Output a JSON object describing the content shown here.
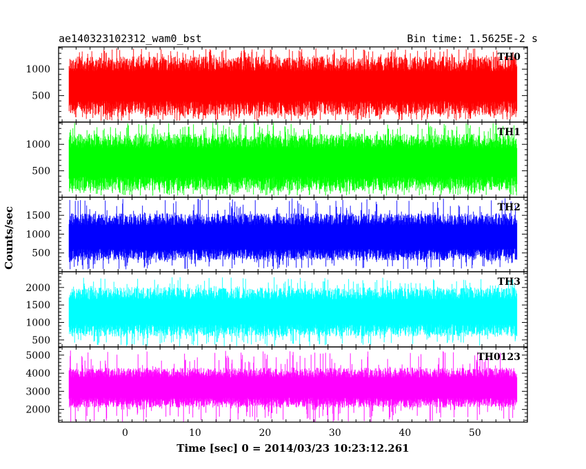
{
  "chart_data": {
    "type": "line",
    "title_left": "ae140323102312_wam0_bst",
    "title_right": "Bin time: 1.5625E-2 s",
    "xlabel": "Time [sec] 0 = 2014/03/23 10:23:12.261",
    "ylabel": "Counts/sec",
    "xlim": [
      -9.5,
      57.5
    ],
    "x_range": [
      -8,
      56
    ],
    "x_ticks": [
      0,
      10,
      20,
      30,
      40,
      50
    ],
    "x_tick_labels": [
      "0",
      "10",
      "20",
      "30",
      "40",
      "50"
    ],
    "bin_time": 0.015625,
    "series": [
      {
        "name": "TH0",
        "color": "#ff0000",
        "ylim": [
          0,
          1420
        ],
        "y_ticks": [
          500,
          1000
        ],
        "y_tick_labels": [
          "500",
          "1000"
        ],
        "mean": 650,
        "envelope": [
          120,
          1240
        ],
        "spike_max": 1400,
        "spike_min": 20
      },
      {
        "name": "TH1",
        "color": "#00ff00",
        "ylim": [
          0,
          1420
        ],
        "y_ticks": [
          500,
          1000
        ],
        "y_tick_labels": [
          "500",
          "1000"
        ],
        "mean": 640,
        "envelope": [
          120,
          1200
        ],
        "spike_max": 1420,
        "spike_min": 30
      },
      {
        "name": "TH2",
        "color": "#0000ff",
        "ylim": [
          0,
          1980
        ],
        "y_ticks": [
          500,
          1000,
          1500
        ],
        "y_tick_labels": [
          "500",
          "1000",
          "1500"
        ],
        "mean": 900,
        "envelope": [
          300,
          1550
        ],
        "spike_max": 1980,
        "spike_min": 60
      },
      {
        "name": "TH3",
        "color": "#00ffff",
        "ylim": [
          300,
          2450
        ],
        "y_ticks": [
          500,
          1000,
          1500,
          2000
        ],
        "y_tick_labels": [
          "500",
          "1000",
          "1500",
          "2000"
        ],
        "mean": 1250,
        "envelope": [
          600,
          2000
        ],
        "spike_max": 2300,
        "spike_min": 320
      },
      {
        "name": "TH0123",
        "color": "#ff00ff",
        "ylim": [
          1300,
          5450
        ],
        "y_ticks": [
          2000,
          3000,
          4000,
          5000
        ],
        "y_tick_labels": [
          "2000",
          "3000",
          "4000",
          "5000"
        ],
        "mean": 3100,
        "envelope": [
          2100,
          4300
        ],
        "spike_max": 5300,
        "spike_min": 1300
      }
    ]
  }
}
